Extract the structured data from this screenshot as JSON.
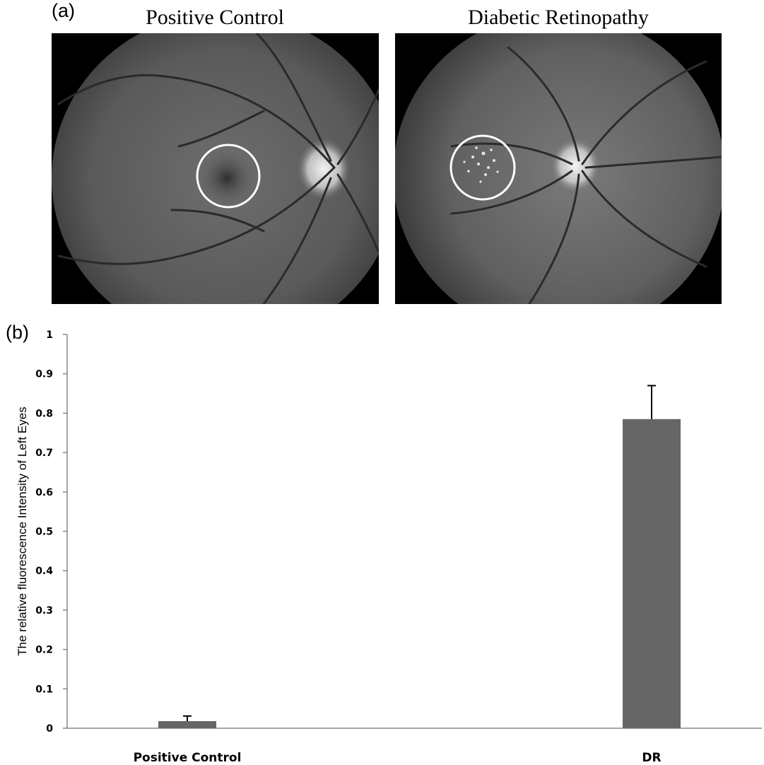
{
  "panel_a": {
    "label": "(a)",
    "images": [
      {
        "title": "Positive Control"
      },
      {
        "title": "Diabetic Retinopathy"
      }
    ]
  },
  "panel_b": {
    "label": "(b)"
  },
  "colors": {
    "bar": "#666666",
    "axis": "#888888",
    "fundus_bg": "#000000"
  },
  "chart_data": {
    "type": "bar",
    "categories": [
      "Positive Control",
      "DR"
    ],
    "values": [
      0.018,
      0.785
    ],
    "errors": [
      0.013,
      0.085
    ],
    "ylabel": "The relative fluorescence Intensity of Left Eyes",
    "xlabel": "",
    "ylim": [
      0,
      1
    ],
    "yticks": [
      "0",
      "0.1",
      "0.2",
      "0.3",
      "0.4",
      "0.5",
      "0.6",
      "0.7",
      "0.8",
      "0.9",
      "1"
    ],
    "grid": false
  }
}
